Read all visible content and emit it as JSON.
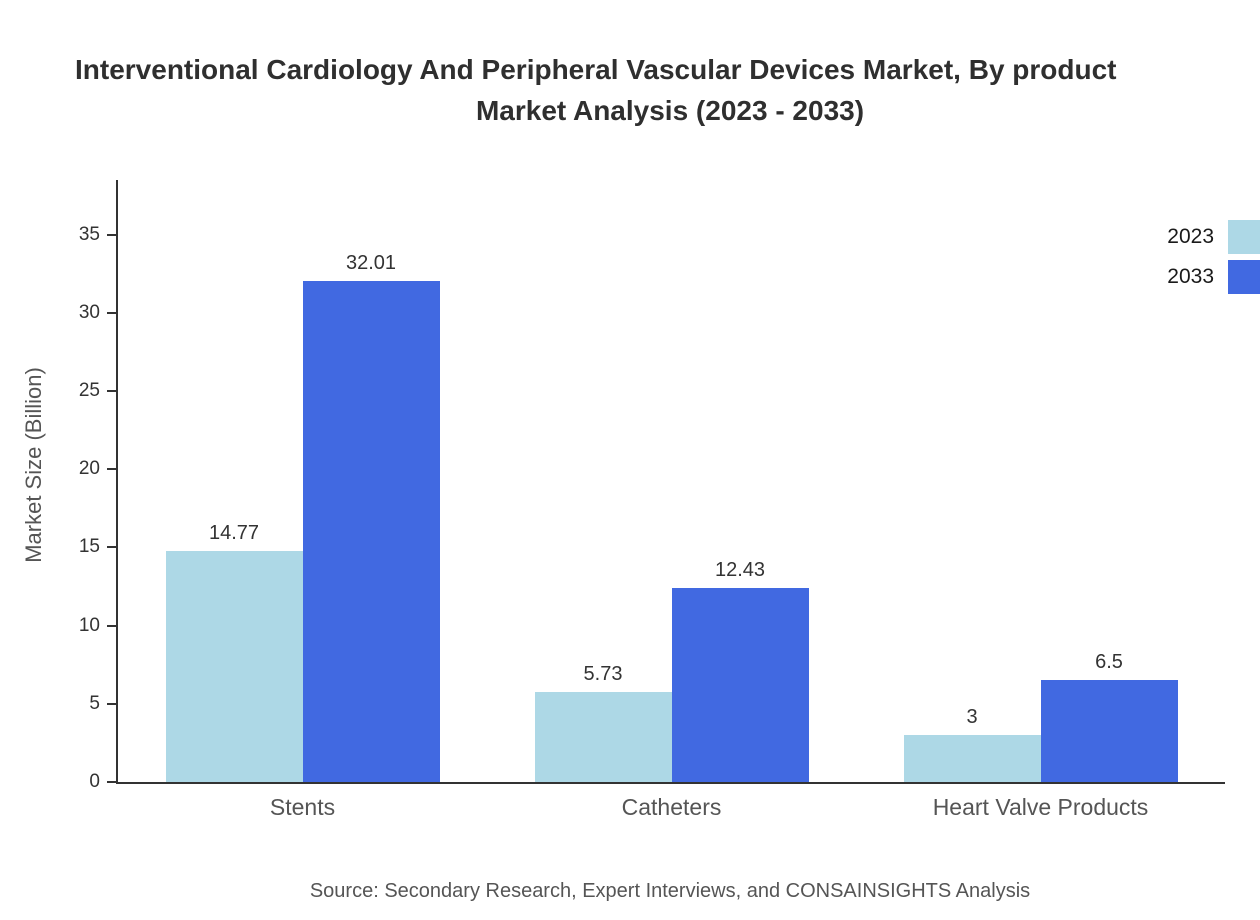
{
  "title": {
    "line1": "Interventional Cardiology And Peripheral Vascular Devices Market, By product",
    "line2": "Market Analysis (2023 - 2033)"
  },
  "legend": [
    {
      "label": "2023",
      "color": "#ADD8E6"
    },
    {
      "label": "2033",
      "color": "#4169E1"
    }
  ],
  "source": "Source: Secondary Research, Expert Interviews, and CONSAINSIGHTS Analysis",
  "chart_data": {
    "type": "bar",
    "title": "Interventional Cardiology And Peripheral Vascular Devices Market, By product Market Analysis (2023 - 2033)",
    "categories": [
      "Stents",
      "Catheters",
      "Heart Valve Products"
    ],
    "series": [
      {
        "name": "2023",
        "color": "#ADD8E6",
        "values": [
          14.77,
          5.73,
          3
        ]
      },
      {
        "name": "2033",
        "color": "#4169E1",
        "values": [
          32.01,
          12.43,
          6.5
        ]
      }
    ],
    "xlabel": "",
    "ylabel": "Market Size (Billion)",
    "yticks": [
      0,
      5,
      10,
      15,
      20,
      25,
      30,
      35
    ],
    "ylim": [
      0,
      38.5
    ],
    "grid": false,
    "value_labels": true,
    "legend_position": "top-right"
  }
}
